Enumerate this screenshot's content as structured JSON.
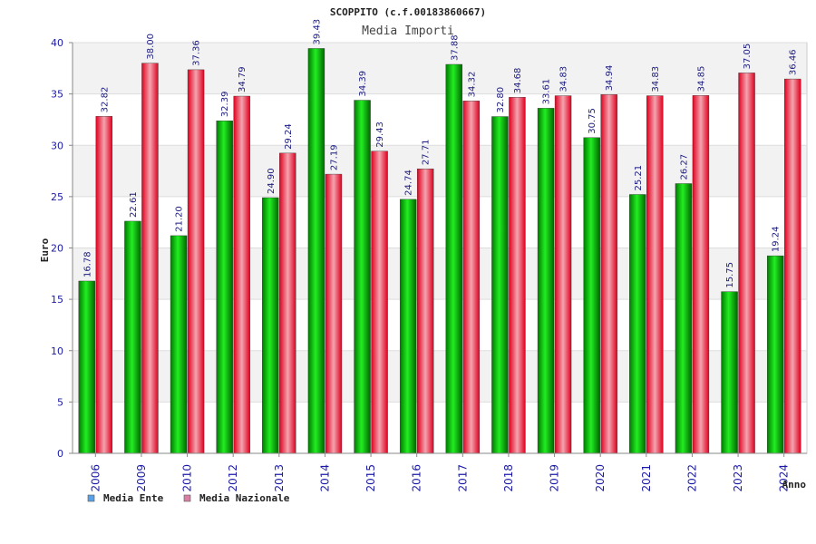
{
  "chart_data": {
    "type": "bar",
    "title": "SCOPPITO (c.f.00183860667)",
    "subtitle": "Media Importi",
    "xlabel": "Anno",
    "ylabel": "Euro",
    "ylim": [
      0,
      40
    ],
    "yticks": [
      0,
      5,
      10,
      15,
      20,
      25,
      30,
      35,
      40
    ],
    "grid": true,
    "legend_position": "bottom-left",
    "categories": [
      "2006",
      "2009",
      "2010",
      "2012",
      "2013",
      "2014",
      "2015",
      "2016",
      "2017",
      "2018",
      "2019",
      "2020",
      "2021",
      "2022",
      "2023",
      "2024"
    ],
    "series": [
      {
        "name": "Media Ente",
        "color": "#00c000",
        "legend_color": "#5aa0e6",
        "values": [
          16.78,
          22.61,
          21.2,
          32.39,
          24.9,
          39.43,
          34.39,
          24.74,
          37.88,
          32.8,
          33.61,
          30.75,
          25.21,
          26.27,
          15.75,
          19.24
        ],
        "labels": [
          "16.78",
          "22.61",
          "21.20",
          "32.39",
          "24.90",
          "39.43",
          "34.39",
          "24.74",
          "37.88",
          "32.80",
          "33.61",
          "30.75",
          "25.21",
          "26.27",
          "15.75",
          "19.24"
        ]
      },
      {
        "name": "Media Nazionale",
        "color": "#e0001e",
        "legend_color": "#d97fa6",
        "values": [
          32.82,
          38.0,
          37.36,
          34.79,
          29.24,
          27.19,
          29.43,
          27.71,
          34.32,
          34.68,
          34.83,
          34.94,
          34.83,
          34.85,
          37.05,
          36.46
        ],
        "labels": [
          "32.82",
          "38.00",
          "37.36",
          "34.79",
          "29.24",
          "27.19",
          "29.43",
          "27.71",
          "34.32",
          "34.68",
          "34.83",
          "34.94",
          "34.83",
          "34.85",
          "37.05",
          "36.46"
        ]
      }
    ]
  }
}
